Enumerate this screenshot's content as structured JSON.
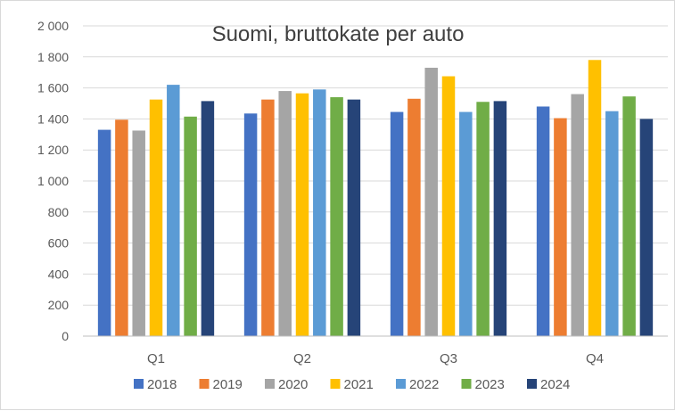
{
  "chart_data": {
    "type": "bar",
    "title": "Suomi, bruttokate per auto",
    "xlabel": "",
    "ylabel": "",
    "categories": [
      "Q1",
      "Q2",
      "Q3",
      "Q4"
    ],
    "ylim": [
      0,
      2000
    ],
    "yticks": [
      0,
      200,
      400,
      600,
      800,
      1000,
      1200,
      1400,
      1600,
      1800,
      2000
    ],
    "ytick_labels": [
      "0",
      "200",
      "400",
      "600",
      "800",
      "1 000",
      "1 200",
      "1 400",
      "1 600",
      "1 800",
      "2 000"
    ],
    "grid": true,
    "legend_position": "bottom",
    "series": [
      {
        "name": "2018",
        "color": "#4472C4",
        "values": [
          1330,
          1435,
          1445,
          1480
        ]
      },
      {
        "name": "2019",
        "color": "#ED7D31",
        "values": [
          1395,
          1525,
          1530,
          1405
        ]
      },
      {
        "name": "2020",
        "color": "#A5A5A5",
        "values": [
          1325,
          1580,
          1730,
          1560
        ]
      },
      {
        "name": "2021",
        "color": "#FFC000",
        "values": [
          1525,
          1565,
          1675,
          1780
        ]
      },
      {
        "name": "2022",
        "color": "#5B9BD5",
        "values": [
          1620,
          1590,
          1445,
          1450
        ]
      },
      {
        "name": "2023",
        "color": "#70AD47",
        "values": [
          1415,
          1540,
          1510,
          1545
        ]
      },
      {
        "name": "2024",
        "color": "#264478",
        "values": [
          1515,
          1525,
          1515,
          1400
        ]
      }
    ]
  }
}
